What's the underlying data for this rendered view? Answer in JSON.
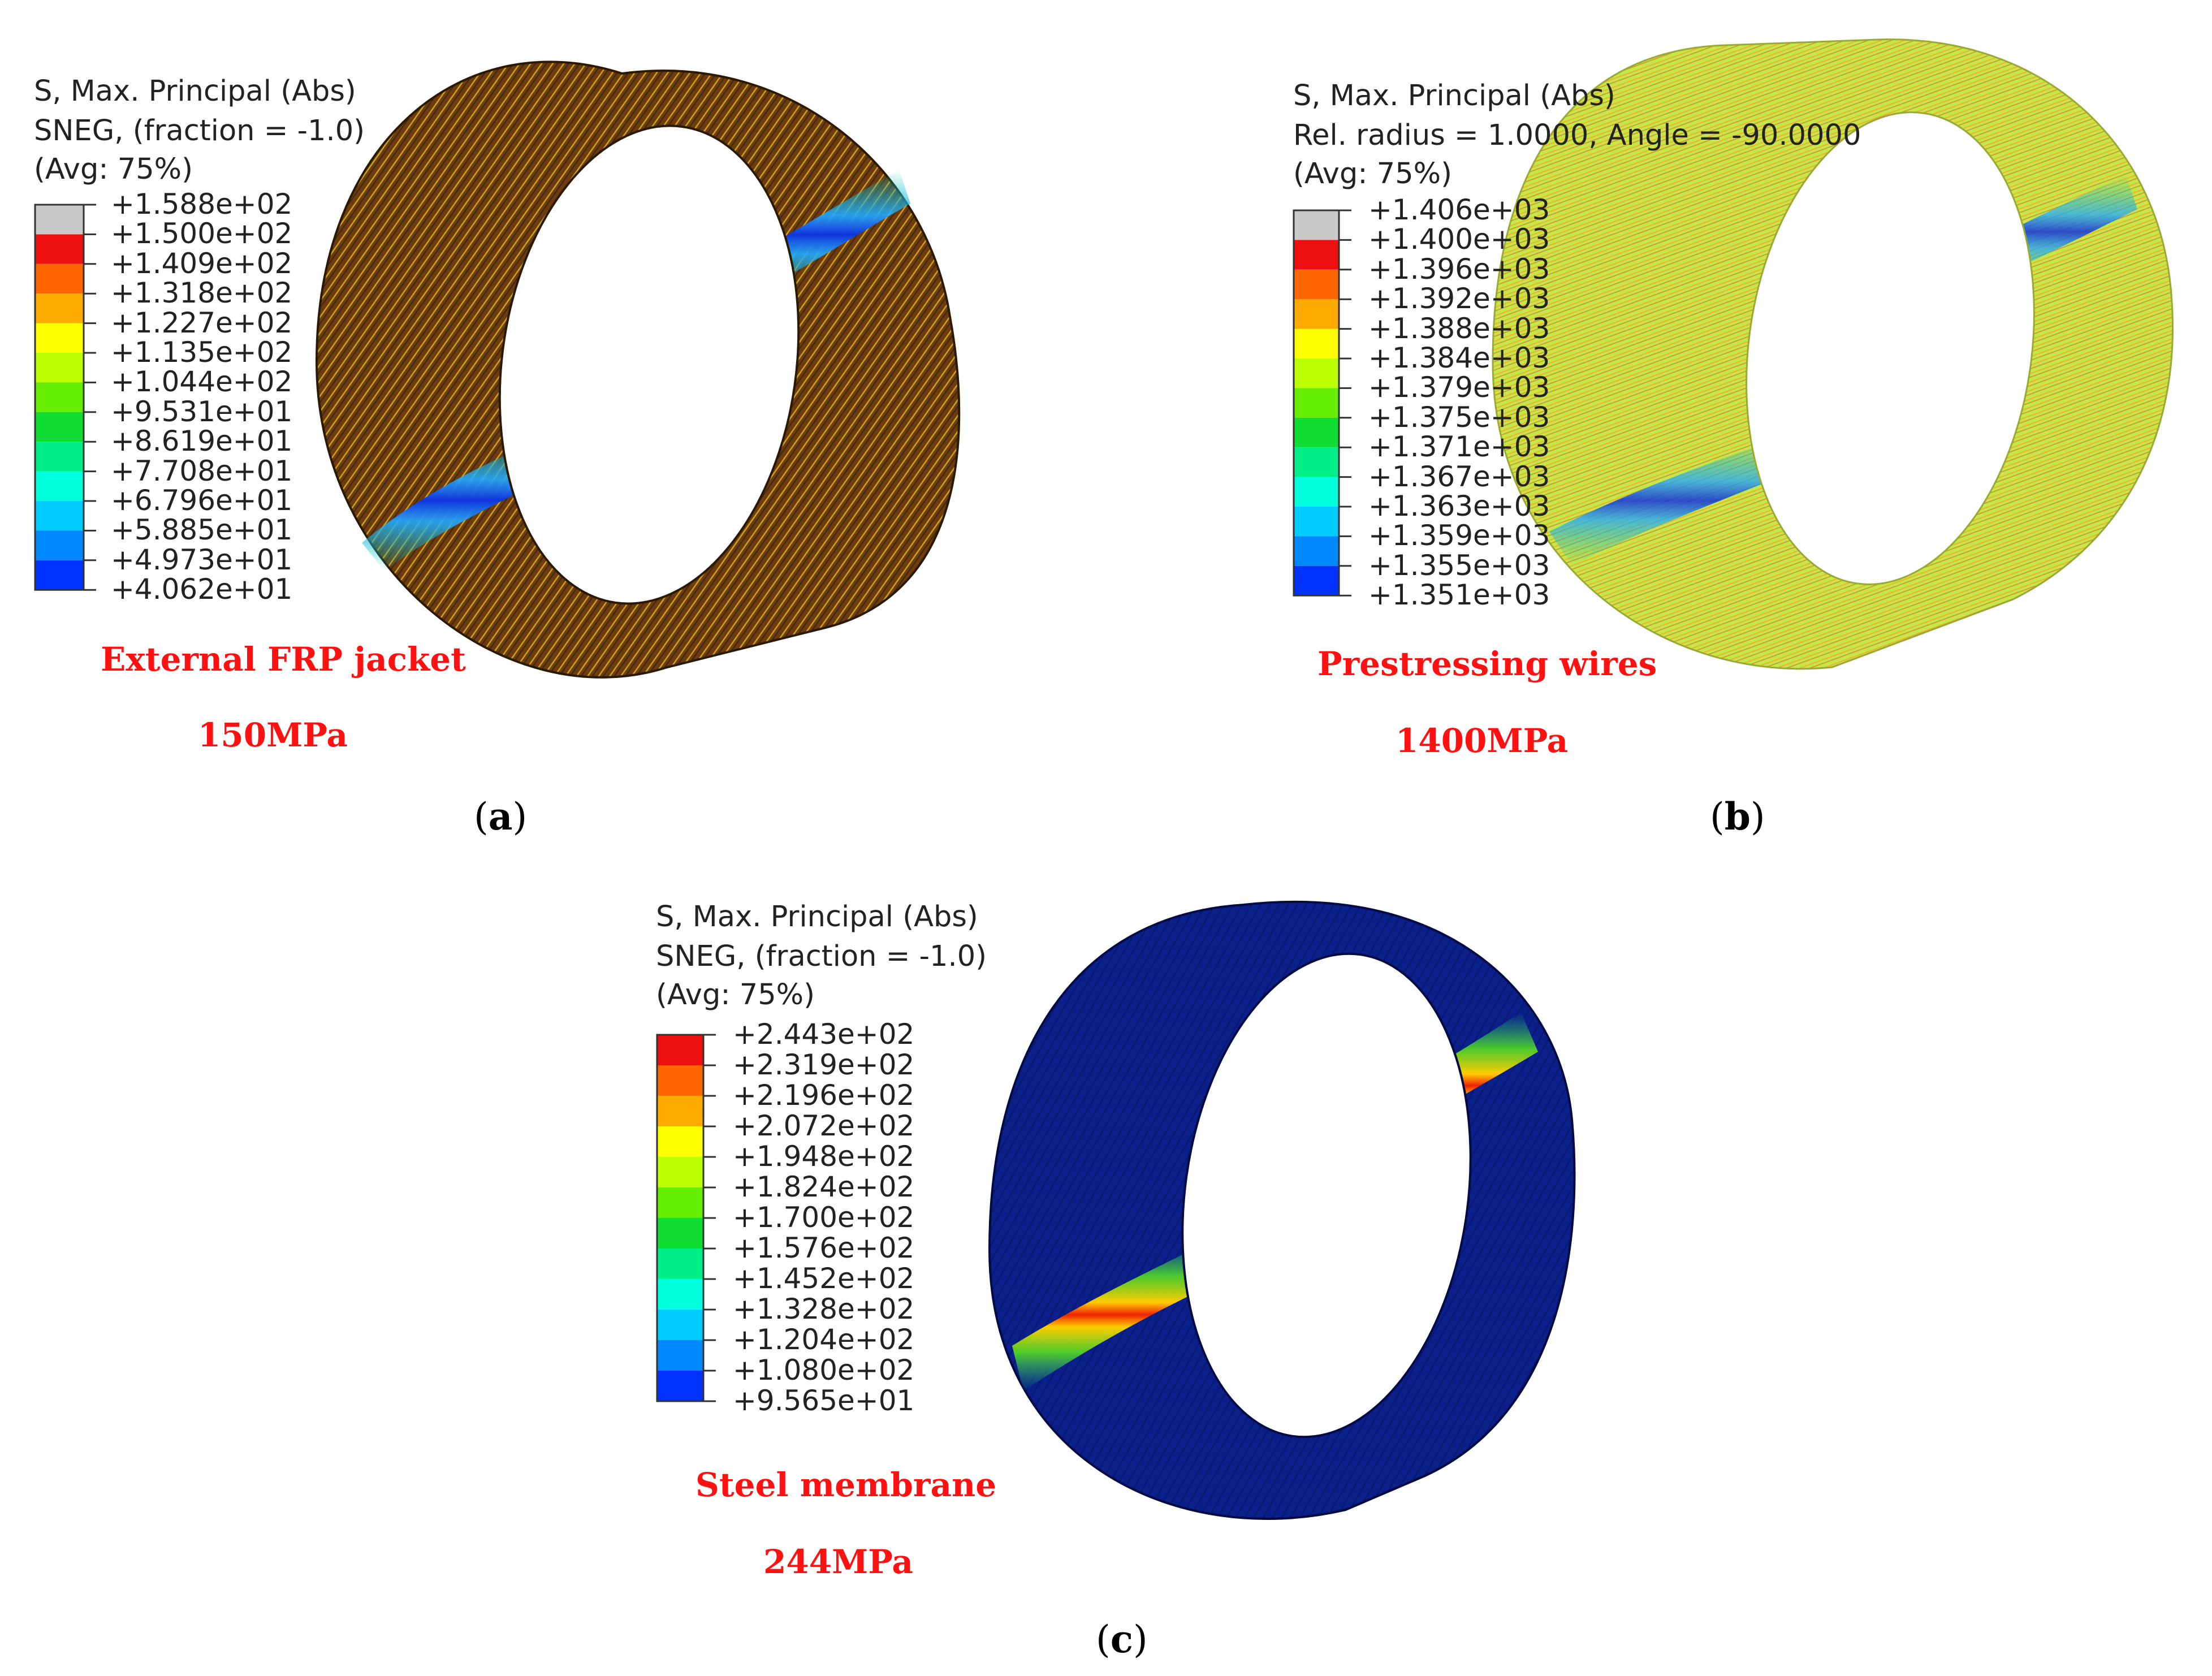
{
  "panels": [
    {
      "id": "a",
      "legend": {
        "line1": "S, Max. Principal (Abs)",
        "line2": "SNEG, (fraction = -1.0)",
        "line3": "(Avg: 75%)",
        "ticks": [
          "+1.588e+02",
          "+1.500e+02",
          "+1.409e+02",
          "+1.318e+02",
          "+1.227e+02",
          "+1.135e+02",
          "+1.044e+02",
          "+9.531e+01",
          "+8.619e+01",
          "+7.708e+01",
          "+6.796e+01",
          "+5.885e+01",
          "+4.973e+01",
          "+4.062e+01"
        ],
        "colors": [
          "#c8c8c8",
          "#ee1010",
          "#ff6600",
          "#ffaa00",
          "#ffff00",
          "#bbff00",
          "#66ee00",
          "#11dd33",
          "#00ee88",
          "#00ffdd",
          "#00ccff",
          "#0088ff",
          "#0033ff"
        ]
      },
      "name": "External FRP jacket",
      "value": "150MPa",
      "caption": "a"
    },
    {
      "id": "b",
      "legend": {
        "line1": "S, Max. Principal (Abs)",
        "line2": "Rel. radius = 1.0000, Angle = -90.0000",
        "line3": "(Avg: 75%)",
        "ticks": [
          "+1.406e+03",
          "+1.400e+03",
          "+1.396e+03",
          "+1.392e+03",
          "+1.388e+03",
          "+1.384e+03",
          "+1.379e+03",
          "+1.375e+03",
          "+1.371e+03",
          "+1.367e+03",
          "+1.363e+03",
          "+1.359e+03",
          "+1.355e+03",
          "+1.351e+03"
        ],
        "colors": [
          "#c8c8c8",
          "#ee1010",
          "#ff6600",
          "#ffaa00",
          "#ffff00",
          "#bbff00",
          "#66ee00",
          "#11dd33",
          "#00ee88",
          "#00ffdd",
          "#00ccff",
          "#0088ff",
          "#0033ff"
        ]
      },
      "name": "Prestressing wires",
      "value": "1400MPa",
      "caption": "b"
    },
    {
      "id": "c",
      "legend": {
        "line1": "S, Max. Principal (Abs)",
        "line2": "SNEG, (fraction = -1.0)",
        "line3": "(Avg: 75%)",
        "ticks": [
          "+2.443e+02",
          "+2.319e+02",
          "+2.196e+02",
          "+2.072e+02",
          "+1.948e+02",
          "+1.824e+02",
          "+1.700e+02",
          "+1.576e+02",
          "+1.452e+02",
          "+1.328e+02",
          "+1.204e+02",
          "+1.080e+02",
          "+9.565e+01"
        ],
        "colors": [
          "#ee1010",
          "#ff6600",
          "#ffaa00",
          "#ffff00",
          "#bbff00",
          "#66ee00",
          "#11dd33",
          "#00ee88",
          "#00ffdd",
          "#00ccff",
          "#0088ff",
          "#0033ff"
        ]
      },
      "name": "Steel membrane",
      "value": "244MPa",
      "caption": "c"
    }
  ]
}
